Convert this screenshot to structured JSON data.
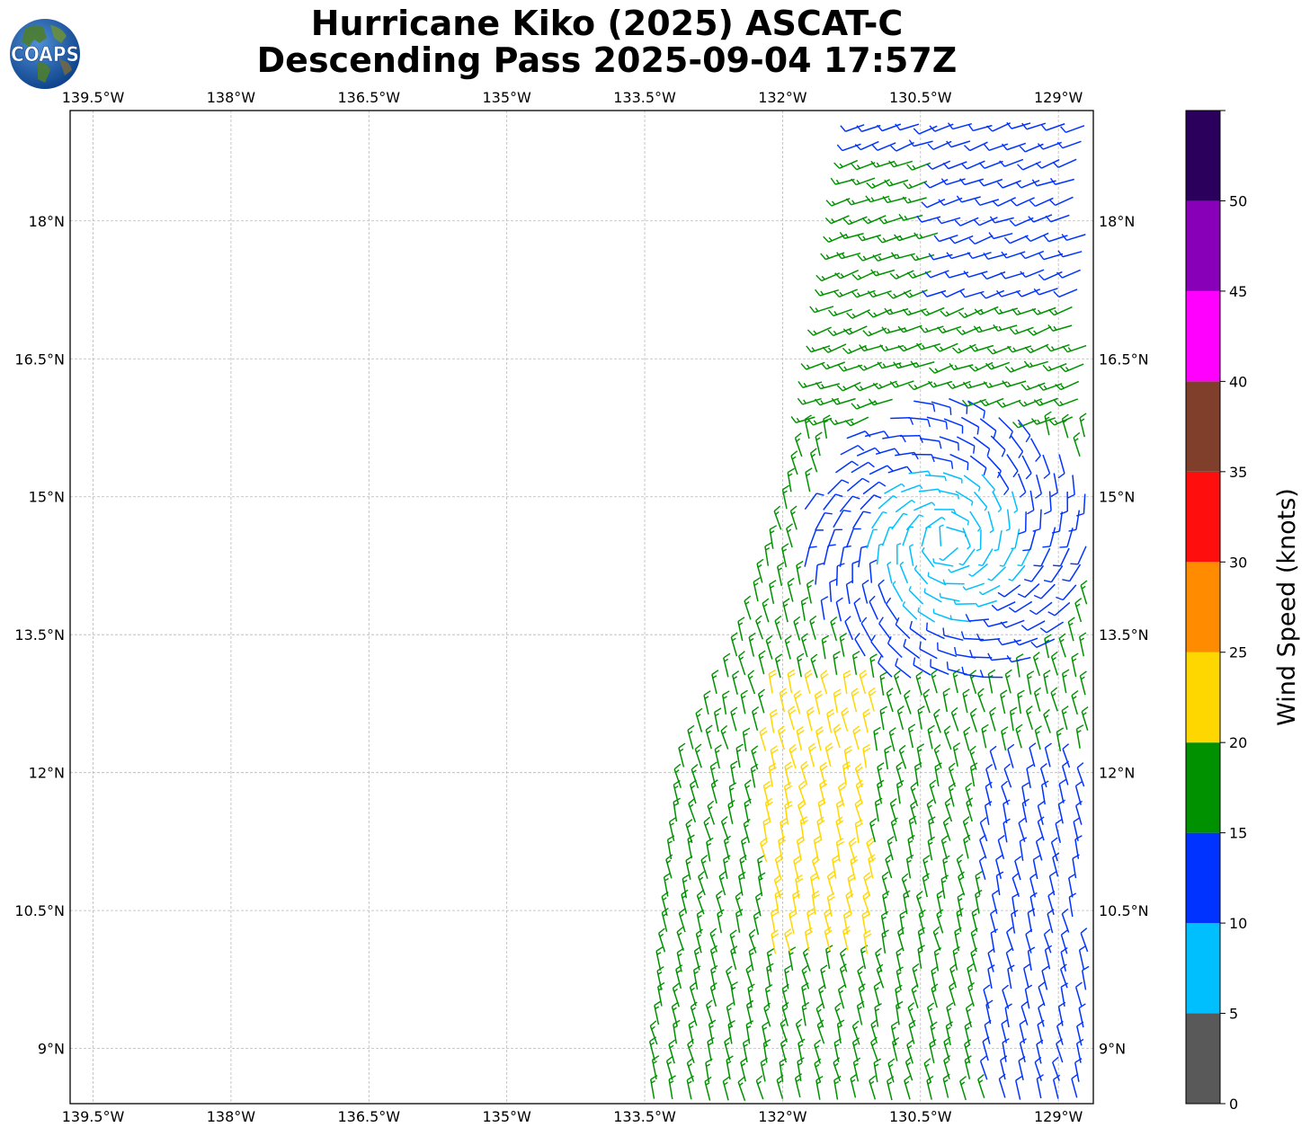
{
  "title": {
    "line1": "Hurricane Kiko (2025) ASCAT-C",
    "line2": "Descending Pass 2025-09-04 17:57Z"
  },
  "logo": {
    "text": "COAPS",
    "icon": "globe-icon"
  },
  "map": {
    "lon_range": [
      -139.75,
      -128.62
    ],
    "lat_range": [
      8.4,
      19.2
    ],
    "grid": true,
    "lon_ticks": [
      {
        "value": -139.5,
        "label": "139.5°W"
      },
      {
        "value": -138,
        "label": "138°W"
      },
      {
        "value": -136.5,
        "label": "136.5°W"
      },
      {
        "value": -135,
        "label": "135°W"
      },
      {
        "value": -133.5,
        "label": "133.5°W"
      },
      {
        "value": -132,
        "label": "132°W"
      },
      {
        "value": -130.5,
        "label": "130.5°W"
      },
      {
        "value": -129,
        "label": "129°W"
      }
    ],
    "lat_ticks": [
      {
        "value": 18,
        "label": "18°N"
      },
      {
        "value": 16.5,
        "label": "16.5°N"
      },
      {
        "value": 15,
        "label": "15°N"
      },
      {
        "value": 13.5,
        "label": "13.5°N"
      },
      {
        "value": 12,
        "label": "12°N"
      },
      {
        "value": 10.5,
        "label": "10.5°N"
      },
      {
        "value": 9,
        "label": "9°N"
      }
    ],
    "swath_west_edge": [
      [
        19.2,
        -131.1
      ],
      [
        16.0,
        -131.6
      ],
      [
        13.5,
        -132.4
      ],
      [
        12.0,
        -133.1
      ],
      [
        10.0,
        -133.3
      ],
      [
        8.4,
        -133.4
      ]
    ],
    "storm_center": [
      14.5,
      -130.2
    ]
  },
  "colorbar": {
    "label": "Wind Speed (knots)",
    "bins": [
      {
        "min": 0,
        "max": 5,
        "color": "#595959"
      },
      {
        "min": 5,
        "max": 10,
        "color": "#00bfff"
      },
      {
        "min": 10,
        "max": 15,
        "color": "#0033ff"
      },
      {
        "min": 15,
        "max": 20,
        "color": "#009100"
      },
      {
        "min": 20,
        "max": 25,
        "color": "#ffd700"
      },
      {
        "min": 25,
        "max": 30,
        "color": "#ff8c00"
      },
      {
        "min": 30,
        "max": 35,
        "color": "#ff0e0e"
      },
      {
        "min": 35,
        "max": 40,
        "color": "#7f3f2a"
      },
      {
        "min": 40,
        "max": 45,
        "color": "#ff00ff"
      },
      {
        "min": 45,
        "max": 50,
        "color": "#8800b8"
      },
      {
        "min": 50,
        "max": 55,
        "color": "#2b005c"
      }
    ],
    "tick_labels": [
      "0",
      "5",
      "10",
      "15",
      "20",
      "25",
      "30",
      "35",
      "40",
      "45",
      "50"
    ]
  }
}
